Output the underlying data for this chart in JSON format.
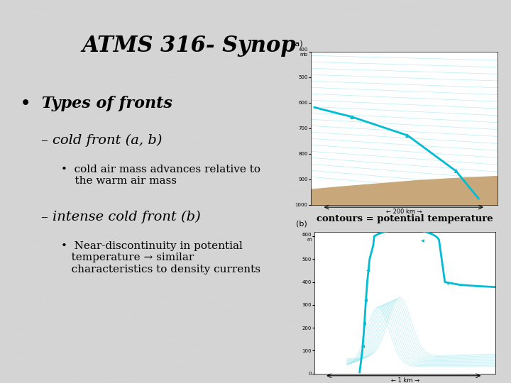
{
  "title_partial": "ATMS 316- Synop",
  "background_color": "#d4d4d4",
  "text_color": "#000000",
  "annotation_box": "contours = potential temperature",
  "scale_a": "← 200 km →",
  "scale_b": "← 1 km →",
  "cyan_color": "#00bcd4",
  "light_cyan": "#a0e8f0",
  "tan_color": "#c8a87a"
}
